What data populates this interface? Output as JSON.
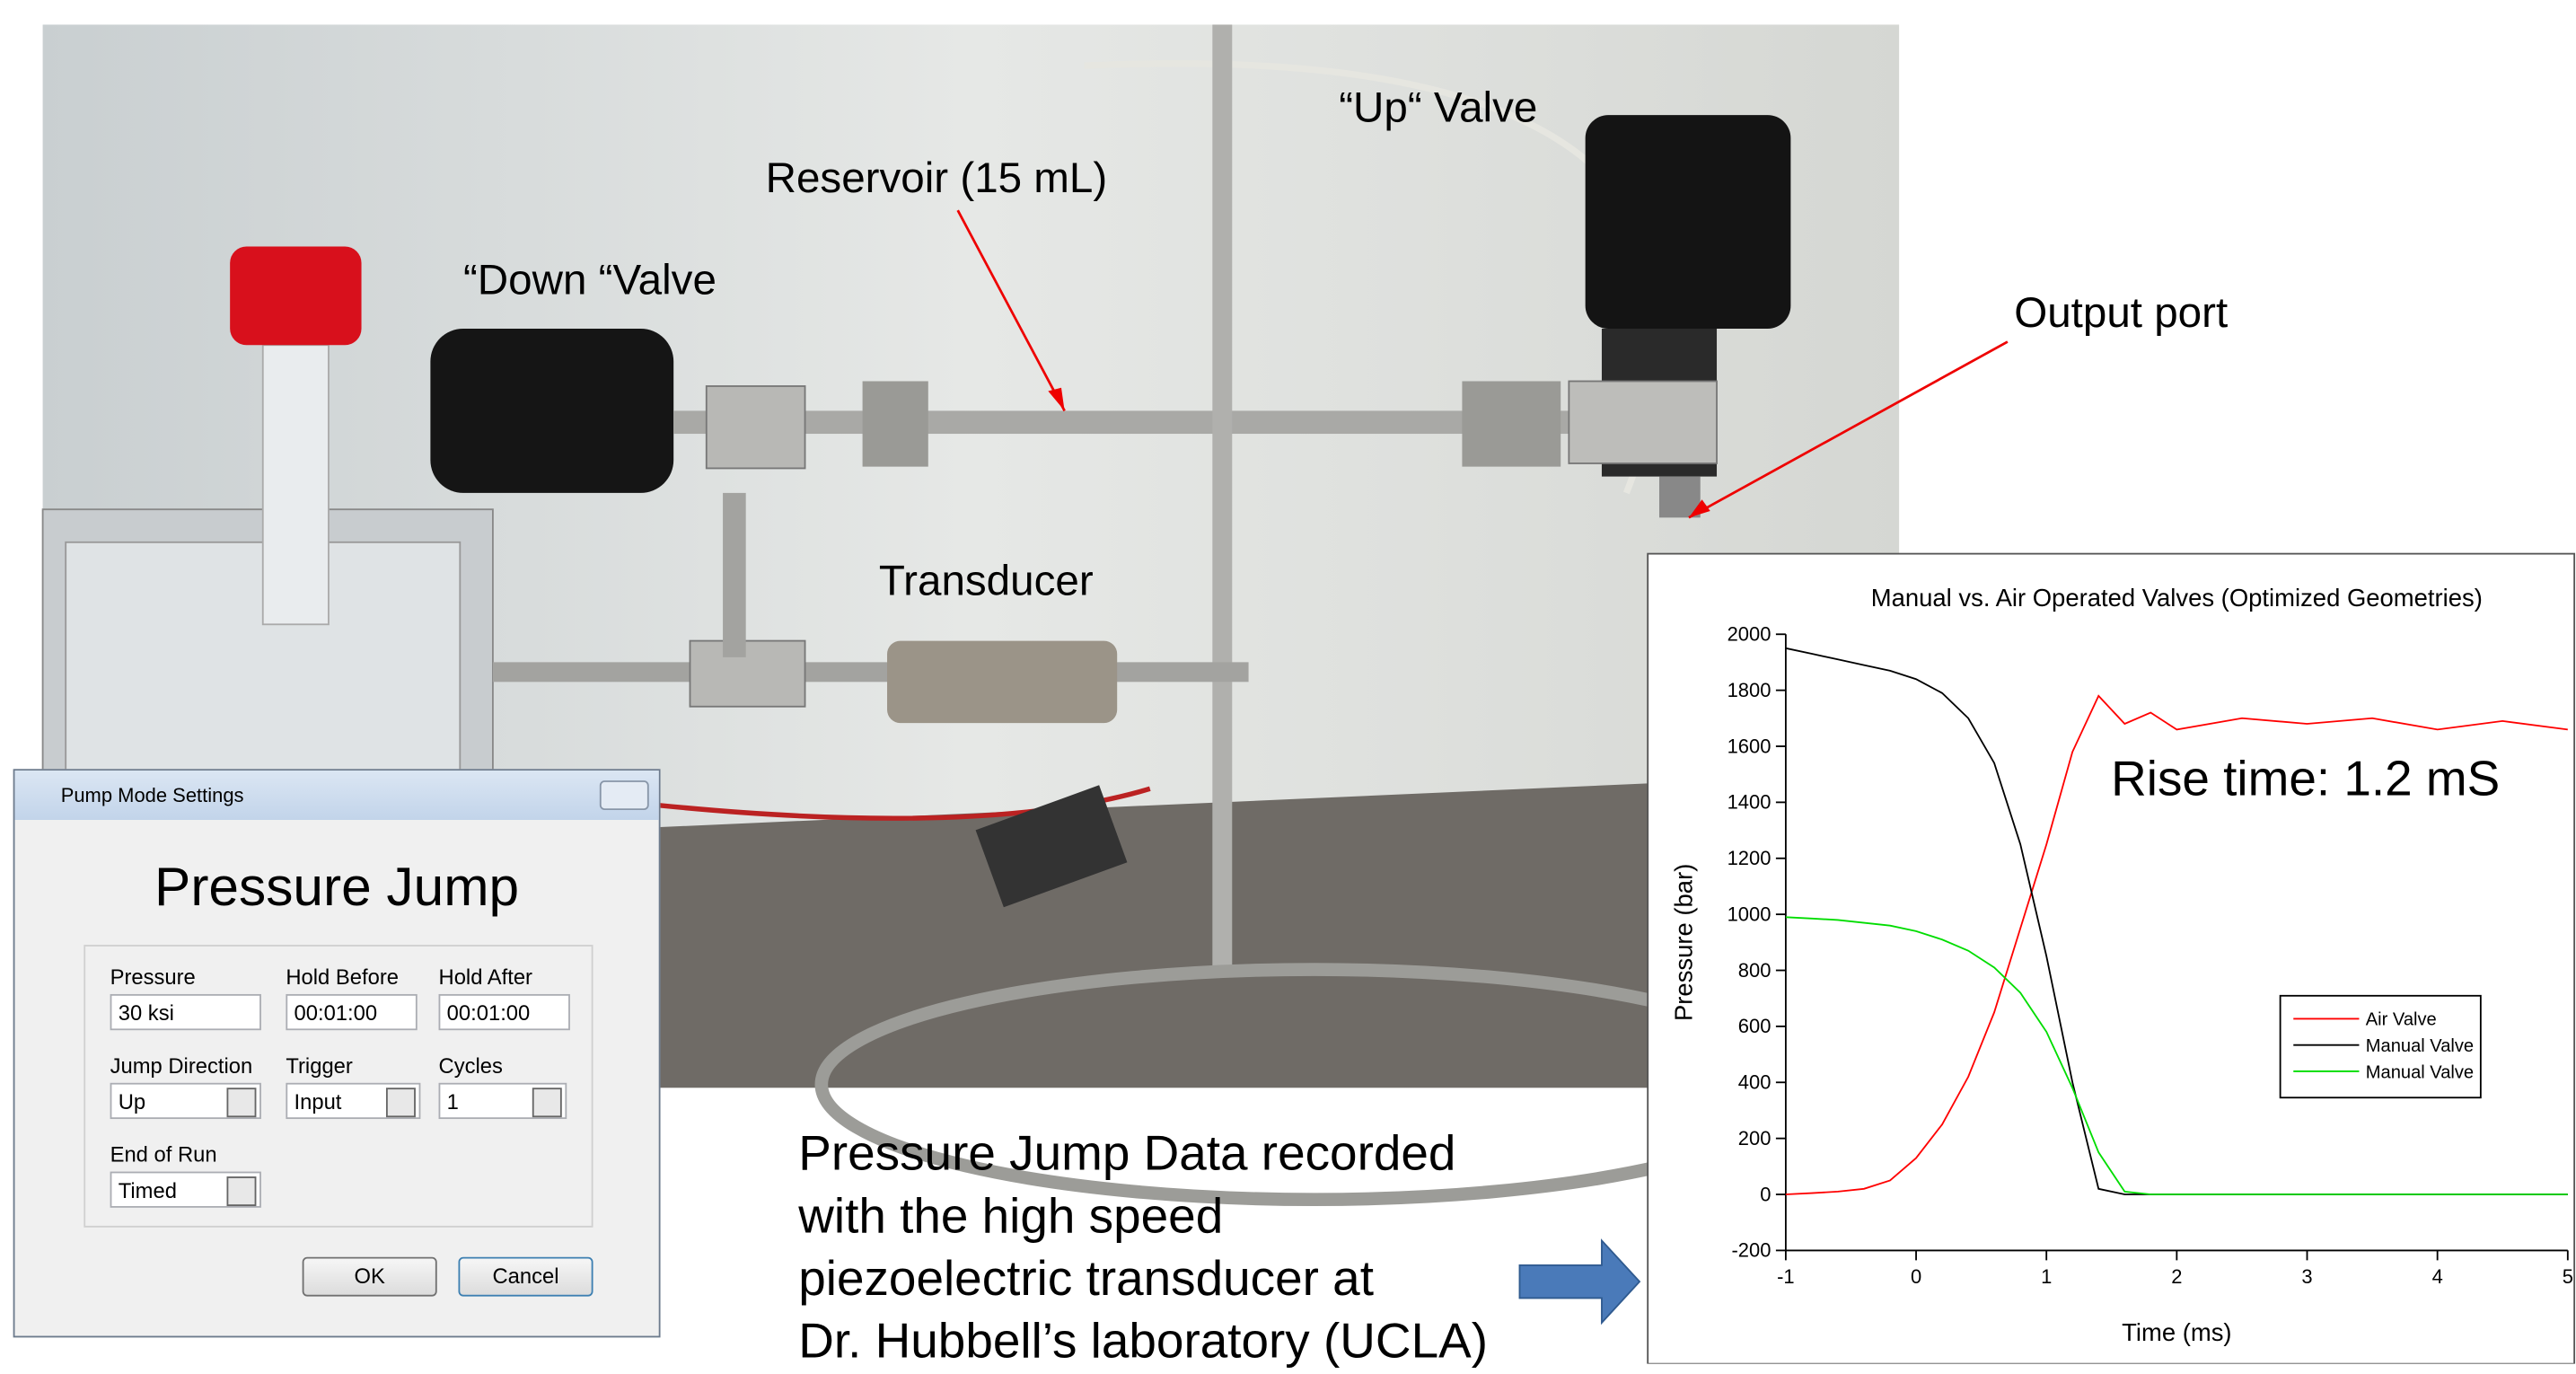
{
  "photo_labels": {
    "up_valve": "“Up“ Valve",
    "reservoir": "Reservoir (15 mL)",
    "down_valve": "“Down “Valve",
    "output_port": "Output port",
    "transducer": "Transducer"
  },
  "dialog": {
    "title": "Pump Mode Settings",
    "heading": "Pressure Jump",
    "fields": [
      {
        "label": "Pressure",
        "value": "30 ksi"
      },
      {
        "label": "Hold Before",
        "value": "00:01:00"
      },
      {
        "label": "Hold After",
        "value": "00:01:00"
      },
      {
        "label": "Jump Direction",
        "value": "Up"
      },
      {
        "label": "Trigger",
        "value": "Input"
      },
      {
        "label": "Cycles",
        "value": "1"
      },
      {
        "label": "End of Run",
        "value": "Timed"
      }
    ],
    "buttons": [
      "OK",
      "Cancel"
    ]
  },
  "caption": [
    "Pressure Jump Data recorded",
    "with the high speed",
    "piezoelectric transducer at",
    "Dr. Hubbell’s laboratory (UCLA)"
  ],
  "chart_data": {
    "type": "line",
    "title": "Manual vs. Air Operated Valves (Optimized Geometries)",
    "x_label": "Time (ms)",
    "y_label": "Pressure (bar)",
    "annotation": "Rise time: 1.2 mS",
    "x": [
      -1,
      -0.8,
      -0.6,
      -0.4,
      -0.2,
      0,
      0.2,
      0.4,
      0.6,
      0.8,
      1,
      1.2,
      1.4,
      1.6,
      1.8,
      2,
      2.5,
      3,
      3.5,
      4,
      4.5,
      5
    ],
    "series": [
      {
        "name": "Air Valve",
        "color": "#ff0000",
        "values": [
          0,
          5,
          10,
          20,
          50,
          130,
          250,
          420,
          650,
          950,
          1250,
          1580,
          1780,
          1680,
          1720,
          1660,
          1700,
          1680,
          1700,
          1660,
          1690,
          1660
        ]
      },
      {
        "name": "Manual Valve",
        "color": "#000000",
        "values": [
          1950,
          1930,
          1910,
          1890,
          1870,
          1840,
          1790,
          1700,
          1540,
          1250,
          850,
          400,
          20,
          0,
          0,
          0,
          0,
          0,
          0,
          0,
          0,
          0
        ]
      },
      {
        "name": "Manual Valve",
        "color": "#00dd00",
        "values": [
          990,
          985,
          980,
          970,
          960,
          940,
          910,
          870,
          810,
          720,
          580,
          380,
          150,
          10,
          0,
          0,
          0,
          0,
          0,
          0,
          0,
          0
        ]
      }
    ],
    "xlim": [
      -1,
      5
    ],
    "xticks": [
      -1,
      0,
      1,
      2,
      3,
      4,
      5
    ],
    "ylim": [
      -200,
      2000
    ],
    "yticks": [
      -200,
      0,
      200,
      400,
      600,
      800,
      1000,
      1200,
      1400,
      1600,
      1800,
      2000
    ],
    "legend": "right"
  }
}
